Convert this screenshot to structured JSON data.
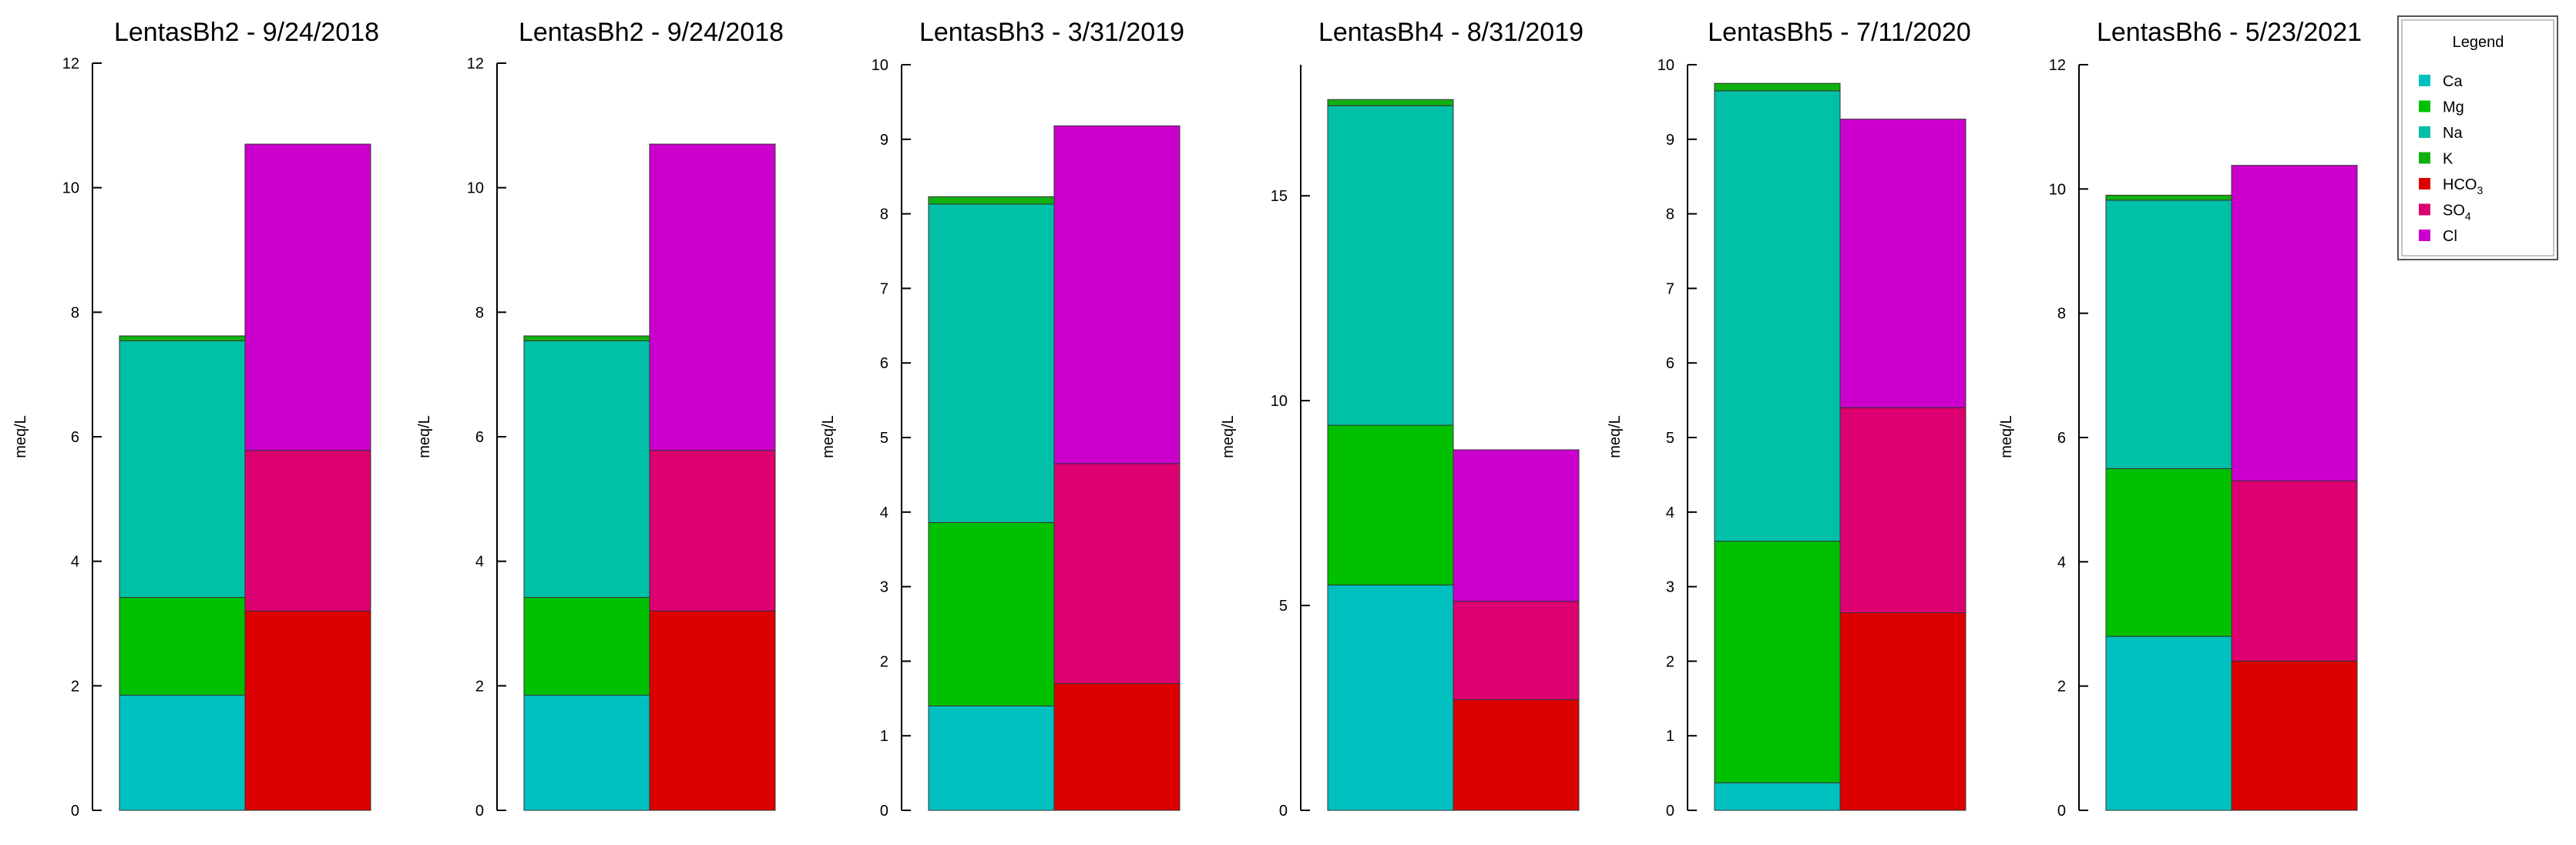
{
  "chart_data": [
    {
      "type": "bar",
      "title": "LentasBh2 - 9/24/2018",
      "ylabel": "meq/L",
      "ylim": [
        0,
        12
      ],
      "yticks": [
        0,
        2,
        4,
        6,
        8,
        10,
        12
      ],
      "cations": [
        {
          "name": "Ca",
          "value": 1.85
        },
        {
          "name": "Mg",
          "value": 1.57
        },
        {
          "name": "Na",
          "value": 4.12
        },
        {
          "name": "K",
          "value": 0.08
        }
      ],
      "anions": [
        {
          "name": "HCO3",
          "value": 3.2
        },
        {
          "name": "SO4",
          "value": 2.58
        },
        {
          "name": "Cl",
          "value": 4.92
        }
      ]
    },
    {
      "type": "bar",
      "title": "LentasBh2 - 9/24/2018",
      "ylabel": "meq/L",
      "ylim": [
        0,
        12
      ],
      "yticks": [
        0,
        2,
        4,
        6,
        8,
        10,
        12
      ],
      "cations": [
        {
          "name": "Ca",
          "value": 1.85
        },
        {
          "name": "Mg",
          "value": 1.57
        },
        {
          "name": "Na",
          "value": 4.12
        },
        {
          "name": "K",
          "value": 0.08
        }
      ],
      "anions": [
        {
          "name": "HCO3",
          "value": 3.2
        },
        {
          "name": "SO4",
          "value": 2.58
        },
        {
          "name": "Cl",
          "value": 4.92
        }
      ]
    },
    {
      "type": "bar",
      "title": "LentasBh3 - 3/31/2019",
      "ylabel": "meq/L",
      "ylim": [
        0,
        10
      ],
      "yticks": [
        0,
        1,
        2,
        3,
        4,
        5,
        6,
        7,
        8,
        9,
        10
      ],
      "cations": [
        {
          "name": "Ca",
          "value": 1.4
        },
        {
          "name": "Mg",
          "value": 2.46
        },
        {
          "name": "Na",
          "value": 4.27
        },
        {
          "name": "K",
          "value": 0.1
        }
      ],
      "anions": [
        {
          "name": "HCO3",
          "value": 1.7
        },
        {
          "name": "SO4",
          "value": 2.95
        },
        {
          "name": "Cl",
          "value": 4.53
        }
      ]
    },
    {
      "type": "bar",
      "title": "LentasBh4 - 8/31/2019",
      "ylabel": "meq/L",
      "ylim": [
        0,
        18.2
      ],
      "yticks": [
        0,
        5,
        10,
        15
      ],
      "cations": [
        {
          "name": "Ca",
          "value": 5.5
        },
        {
          "name": "Mg",
          "value": 3.9
        },
        {
          "name": "Na",
          "value": 7.8
        },
        {
          "name": "K",
          "value": 0.15
        }
      ],
      "anions": [
        {
          "name": "HCO3",
          "value": 2.7
        },
        {
          "name": "SO4",
          "value": 2.4
        },
        {
          "name": "Cl",
          "value": 3.7
        }
      ]
    },
    {
      "type": "bar",
      "title": "LentasBh5 - 7/11/2020",
      "ylabel": "meq/L",
      "ylim": [
        0,
        10
      ],
      "yticks": [
        0,
        1,
        2,
        3,
        4,
        5,
        6,
        7,
        8,
        9,
        10
      ],
      "cations": [
        {
          "name": "Ca",
          "value": 0.37
        },
        {
          "name": "Mg",
          "value": 3.24
        },
        {
          "name": "Na",
          "value": 6.04
        },
        {
          "name": "K",
          "value": 0.1
        }
      ],
      "anions": [
        {
          "name": "HCO3",
          "value": 2.65
        },
        {
          "name": "SO4",
          "value": 2.75
        },
        {
          "name": "Cl",
          "value": 3.87
        }
      ]
    },
    {
      "type": "bar",
      "title": "LentasBh6 - 5/23/2021",
      "ylabel": "meq/L",
      "ylim": [
        0,
        12
      ],
      "yticks": [
        0,
        2,
        4,
        6,
        8,
        10,
        12
      ],
      "cations": [
        {
          "name": "Ca",
          "value": 2.8
        },
        {
          "name": "Mg",
          "value": 2.7
        },
        {
          "name": "Na",
          "value": 4.32
        },
        {
          "name": "K",
          "value": 0.08
        }
      ],
      "anions": [
        {
          "name": "HCO3",
          "value": 2.4
        },
        {
          "name": "SO4",
          "value": 2.9
        },
        {
          "name": "Cl",
          "value": 5.08
        }
      ]
    }
  ],
  "legend": {
    "title": "Legend",
    "items": [
      {
        "key": "Ca",
        "label": "Ca",
        "sub": "",
        "color": "#00C0C0"
      },
      {
        "key": "Mg",
        "label": "Mg",
        "sub": "",
        "color": "#00C000"
      },
      {
        "key": "Na",
        "label": "Na",
        "sub": "",
        "color": "#00C0A8"
      },
      {
        "key": "K",
        "label": "K",
        "sub": "",
        "color": "#10B010"
      },
      {
        "key": "HCO3",
        "label": "HCO",
        "sub": "3",
        "color": "#DD0000"
      },
      {
        "key": "SO4",
        "label": "SO",
        "sub": "4",
        "color": "#DD0070"
      },
      {
        "key": "Cl",
        "label": "Cl",
        "sub": "",
        "color": "#CC00CC"
      }
    ]
  }
}
